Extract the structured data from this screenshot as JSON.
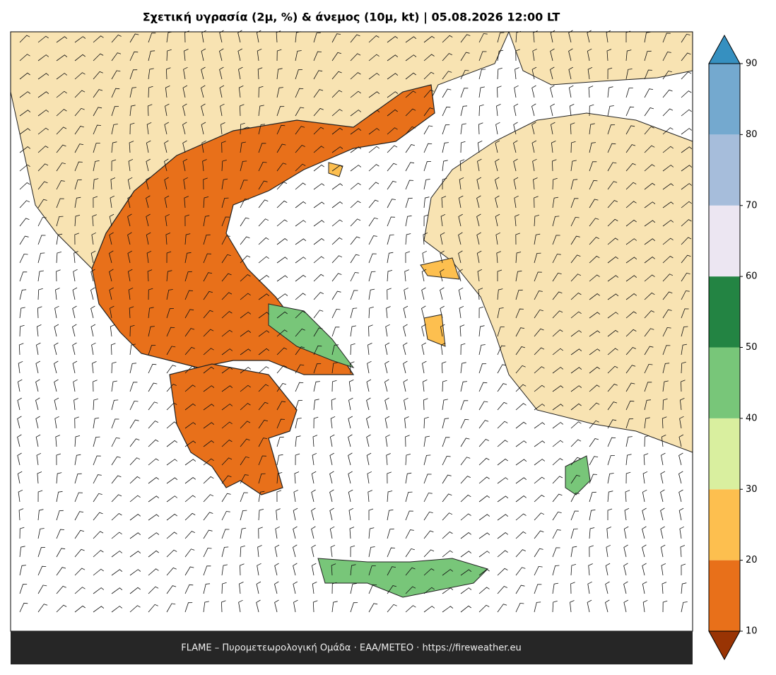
{
  "title": "Σχετική υγρασία (2μ, %) & άνεμος (10μ, kt)  |  05.08.2026 12:00 LT",
  "footer": "FLAME – Πυρομετεωρολογική Ομάδα · ΕΑΑ/METEO · https://fireweather.eu",
  "colorbar": {
    "ticks": [
      10,
      20,
      30,
      40,
      50,
      60,
      70,
      80,
      90
    ],
    "colors": [
      "#e8701a",
      "#fdbf4f",
      "#d9ef9f",
      "#78c679",
      "#238443",
      "#ece6f2",
      "#a6bddb",
      "#74a9cf"
    ],
    "extend_low_color": "#993404",
    "extend_high_color": "#3690c0"
  }
}
